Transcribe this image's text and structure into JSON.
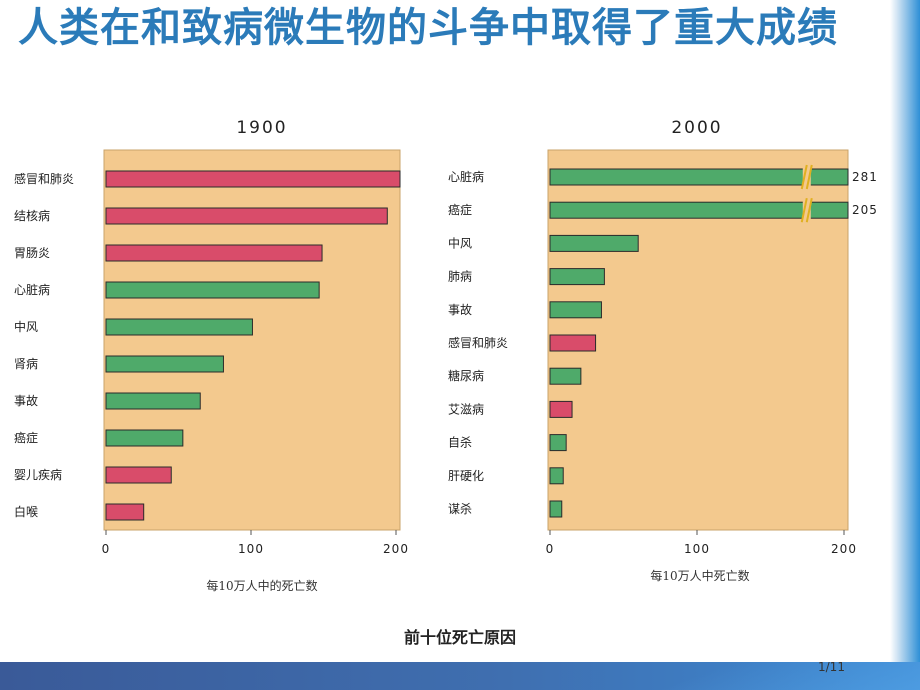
{
  "slide": {
    "title": "人类在和致病微生物的斗争中取得了重大成绩",
    "caption": "前十位死亡原因",
    "page_number": "1/11"
  },
  "colors": {
    "title": "#2b7bb9",
    "panel": "#f3c98e",
    "bar_red": "#d94c6a",
    "bar_green": "#4faa6a",
    "bar_outline": "#2a2a2a"
  },
  "chart_data": [
    {
      "type": "bar",
      "orientation": "horizontal",
      "title": "1900",
      "xlabel": "每10万人中的死亡数",
      "xlim": [
        0,
        200
      ],
      "xticks": [
        0,
        100,
        200
      ],
      "categories": [
        "感冒和肺炎",
        "结核病",
        "胃肠炎",
        "心脏病",
        "中风",
        "肾病",
        "事故",
        "癌症",
        "婴儿疾病",
        "白喉"
      ],
      "values": [
        202,
        194,
        149,
        147,
        101,
        81,
        65,
        53,
        45,
        26
      ],
      "bar_colors": [
        "red",
        "red",
        "red",
        "green",
        "green",
        "green",
        "green",
        "green",
        "red",
        "red"
      ]
    },
    {
      "type": "bar",
      "orientation": "horizontal",
      "title": "2000",
      "xlabel": "每10万人中死亡数",
      "xlim": [
        0,
        200
      ],
      "xticks": [
        0,
        100,
        200
      ],
      "categories": [
        "心脏病",
        "癌症",
        "中风",
        "肺病",
        "事故",
        "感冒和肺炎",
        "糖尿病",
        "艾滋病",
        "自杀",
        "肝硬化",
        "谋杀"
      ],
      "values": [
        281,
        205,
        60,
        37,
        35,
        31,
        21,
        15,
        11,
        9,
        8
      ],
      "value_labels": [
        "281",
        "205",
        "",
        "",
        "",
        "",
        "",
        "",
        "",
        "",
        ""
      ],
      "axis_break": true,
      "bar_colors": [
        "green",
        "green",
        "green",
        "green",
        "green",
        "red",
        "green",
        "red",
        "green",
        "green",
        "green"
      ]
    }
  ]
}
